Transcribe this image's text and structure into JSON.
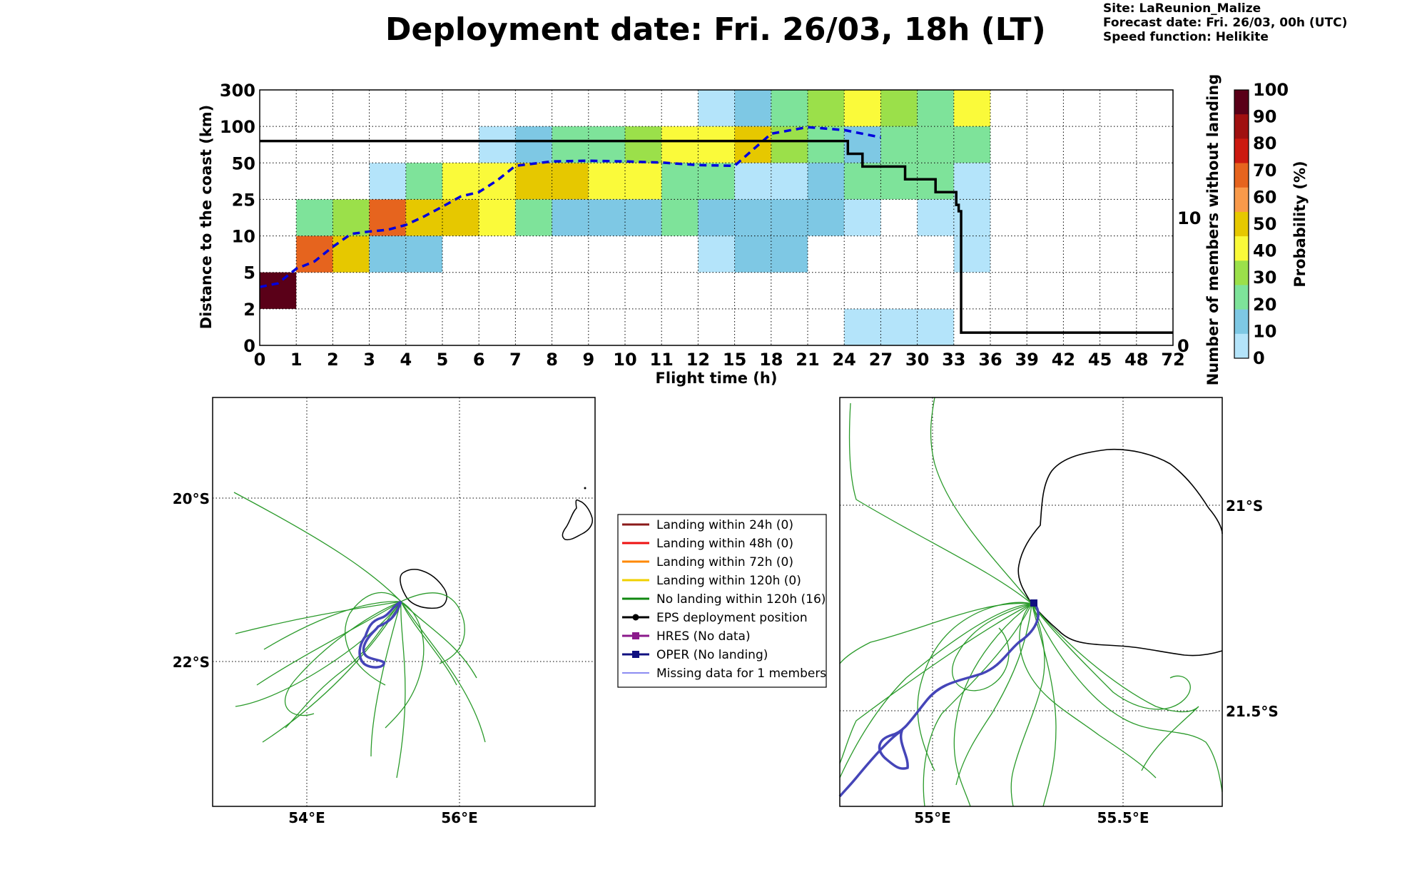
{
  "header": {
    "title": "Deployment date: Fri. 26/03, 18h (LT)",
    "site": "Site: LaReunion_Malize",
    "forecast": "Forecast date: Fri. 26/03, 00h (UTC)",
    "speed": "Speed function: Helikite"
  },
  "chart_data": [
    {
      "type": "heatmap",
      "title": "",
      "xlabel": "Flight time (h)",
      "ylabel": "Distance to the coast (km)",
      "ylabel_right": "Number of members without landing",
      "x_ticks": [
        "0",
        "1",
        "2",
        "3",
        "4",
        "5",
        "6",
        "7",
        "8",
        "9",
        "10",
        "11",
        "12",
        "15",
        "18",
        "21",
        "24",
        "27",
        "30",
        "33",
        "36",
        "39",
        "42",
        "45",
        "48",
        "72"
      ],
      "y_ticks": [
        "0",
        "2",
        "5",
        "10",
        "25",
        "50",
        "100",
        "300"
      ],
      "right_ticks": [
        "0",
        "10"
      ],
      "colorbar": {
        "label": "Probability (%)",
        "levels": [
          "0",
          "10",
          "20",
          "30",
          "40",
          "50",
          "60",
          "70",
          "80",
          "90",
          "100"
        ],
        "colors": [
          "#b4e4fa",
          "#7ec8e4",
          "#7ee39a",
          "#9be04a",
          "#fafa3a",
          "#e6c800",
          "#f99a4a",
          "#e6641e",
          "#cc1a10",
          "#a01010",
          "#5a0018"
        ]
      },
      "cells": [
        {
          "x": "0-1",
          "y": "2-5",
          "p": 100
        },
        {
          "x": "1-2",
          "y": "5-10",
          "p": 70
        },
        {
          "x": "1-2",
          "y": "10-25",
          "p": 20
        },
        {
          "x": "2-3",
          "y": "5-10",
          "p": 50
        },
        {
          "x": "2-3",
          "y": "10-25",
          "p": 30
        },
        {
          "x": "3-4",
          "y": "5-10",
          "p": 10
        },
        {
          "x": "3-4",
          "y": "10-25",
          "p": 70
        },
        {
          "x": "3-4",
          "y": "25-50",
          "p": 0
        },
        {
          "x": "4-5",
          "y": "5-10",
          "p": 10
        },
        {
          "x": "4-5",
          "y": "10-25",
          "p": 50
        },
        {
          "x": "4-5",
          "y": "25-50",
          "p": 20
        },
        {
          "x": "5-6",
          "y": "10-25",
          "p": 50
        },
        {
          "x": "5-6",
          "y": "25-50",
          "p": 40
        },
        {
          "x": "6-7",
          "y": "10-25",
          "p": 40
        },
        {
          "x": "6-7",
          "y": "25-50",
          "p": 40
        },
        {
          "x": "6-7",
          "y": "50-100",
          "p": 0
        },
        {
          "x": "7-8",
          "y": "10-25",
          "p": 20
        },
        {
          "x": "7-8",
          "y": "25-50",
          "p": 50
        },
        {
          "x": "7-8",
          "y": "50-100",
          "p": 10
        },
        {
          "x": "8-9",
          "y": "10-25",
          "p": 10
        },
        {
          "x": "8-9",
          "y": "25-50",
          "p": 50
        },
        {
          "x": "8-9",
          "y": "50-100",
          "p": 20
        },
        {
          "x": "9-10",
          "y": "10-25",
          "p": 10
        },
        {
          "x": "9-10",
          "y": "25-50",
          "p": 40
        },
        {
          "x": "9-10",
          "y": "50-100",
          "p": 20
        },
        {
          "x": "10-11",
          "y": "10-25",
          "p": 10
        },
        {
          "x": "10-11",
          "y": "25-50",
          "p": 40
        },
        {
          "x": "10-11",
          "y": "50-100",
          "p": 30
        },
        {
          "x": "11-12",
          "y": "10-25",
          "p": 20
        },
        {
          "x": "11-12",
          "y": "25-50",
          "p": 20
        },
        {
          "x": "11-12",
          "y": "50-100",
          "p": 40
        },
        {
          "x": "12-15",
          "y": "5-10",
          "p": 0
        },
        {
          "x": "12-15",
          "y": "10-25",
          "p": 10
        },
        {
          "x": "12-15",
          "y": "25-50",
          "p": 20
        },
        {
          "x": "12-15",
          "y": "50-100",
          "p": 40
        },
        {
          "x": "12-15",
          "y": "100-300",
          "p": 0
        },
        {
          "x": "15-18",
          "y": "5-10",
          "p": 10
        },
        {
          "x": "15-18",
          "y": "10-25",
          "p": 10
        },
        {
          "x": "15-18",
          "y": "25-50",
          "p": 0
        },
        {
          "x": "15-18",
          "y": "50-100",
          "p": 50
        },
        {
          "x": "15-18",
          "y": "100-300",
          "p": 10
        },
        {
          "x": "18-21",
          "y": "5-10",
          "p": 10
        },
        {
          "x": "18-21",
          "y": "10-25",
          "p": 10
        },
        {
          "x": "18-21",
          "y": "25-50",
          "p": 0
        },
        {
          "x": "18-21",
          "y": "50-100",
          "p": 30
        },
        {
          "x": "18-21",
          "y": "100-300",
          "p": 20
        },
        {
          "x": "21-24",
          "y": "10-25",
          "p": 10
        },
        {
          "x": "21-24",
          "y": "25-50",
          "p": 10
        },
        {
          "x": "21-24",
          "y": "50-100",
          "p": 20
        },
        {
          "x": "21-24",
          "y": "100-300",
          "p": 30
        },
        {
          "x": "24-27",
          "y": "0-2",
          "p": 0
        },
        {
          "x": "24-27",
          "y": "10-25",
          "p": 0
        },
        {
          "x": "24-27",
          "y": "25-50",
          "p": 20
        },
        {
          "x": "24-27",
          "y": "50-100",
          "p": 10
        },
        {
          "x": "24-27",
          "y": "100-300",
          "p": 40
        },
        {
          "x": "27-30",
          "y": "0-2",
          "p": 0
        },
        {
          "x": "27-30",
          "y": "25-50",
          "p": 20
        },
        {
          "x": "27-30",
          "y": "50-100",
          "p": 20
        },
        {
          "x": "27-30",
          "y": "100-300",
          "p": 30
        },
        {
          "x": "30-33",
          "y": "0-2",
          "p": 0
        },
        {
          "x": "30-33",
          "y": "10-25",
          "p": 0
        },
        {
          "x": "30-33",
          "y": "25-50",
          "p": 20
        },
        {
          "x": "30-33",
          "y": "50-100",
          "p": 20
        },
        {
          "x": "30-33",
          "y": "100-300",
          "p": 20
        },
        {
          "x": "33-36",
          "y": "5-10",
          "p": 0
        },
        {
          "x": "33-36",
          "y": "10-25",
          "p": 0
        },
        {
          "x": "33-36",
          "y": "25-50",
          "p": 0
        },
        {
          "x": "33-36",
          "y": "50-100",
          "p": 20
        },
        {
          "x": "33-36",
          "y": "100-300",
          "p": 40
        }
      ],
      "series": [
        {
          "type": "line",
          "style": "dashed",
          "color": "#0000dd",
          "x": [
            0,
            0.5,
            1,
            1.5,
            2,
            2.5,
            3,
            3.5,
            4,
            4.5,
            5,
            5.5,
            6,
            6.5,
            7,
            8,
            9,
            10,
            11,
            12,
            15,
            18,
            21,
            24,
            27
          ],
          "y": [
            3.8,
            4.1,
            5.5,
            6.5,
            8.5,
            10.8,
            11.8,
            12.5,
            14.5,
            18,
            22,
            27,
            30,
            38,
            48,
            52,
            53,
            52,
            50.5,
            48.5,
            48,
            90,
            99,
            95,
            85
          ]
        },
        {
          "type": "step",
          "color": "#000000",
          "axis": "right",
          "x": [
            0,
            24,
            24.3,
            25.5,
            28,
            29,
            30.5,
            31.5,
            33,
            33.2,
            33.4,
            33.6,
            36,
            72
          ],
          "y": [
            16,
            16,
            15,
            14,
            14,
            13,
            13,
            12,
            12,
            11,
            10.5,
            1,
            1,
            1
          ]
        }
      ]
    }
  ],
  "legend": {
    "items": [
      {
        "label": "Landing within 24h (0)",
        "color": "#8b1a1a",
        "marker": "none"
      },
      {
        "label": "Landing within 48h (0)",
        "color": "#ee1111",
        "marker": "none"
      },
      {
        "label": "Landing within 72h (0)",
        "color": "#ff8800",
        "marker": "none"
      },
      {
        "label": "Landing within 120h (0)",
        "color": "#f0d000",
        "marker": "none"
      },
      {
        "label": "No landing within 120h (16)",
        "color": "#118811",
        "marker": "none"
      },
      {
        "label": "EPS deployment position",
        "color": "#000000",
        "marker": "circle"
      },
      {
        "label": "HRES (No data)",
        "color": "#8b1a8b",
        "marker": "square"
      },
      {
        "label": "OPER (No landing)",
        "color": "#101080",
        "marker": "square"
      },
      {
        "label": "Missing data for 1 members",
        "color": "#6666ee",
        "marker": "none"
      }
    ]
  },
  "maps": {
    "left": {
      "lat_labels": [
        "20°S",
        "22°S"
      ],
      "lon_labels": [
        "54°E",
        "56°E"
      ]
    },
    "right": {
      "lat_labels": [
        "21°S",
        "21.5°S"
      ],
      "lon_labels": [
        "55°E",
        "55.5°E"
      ]
    }
  }
}
